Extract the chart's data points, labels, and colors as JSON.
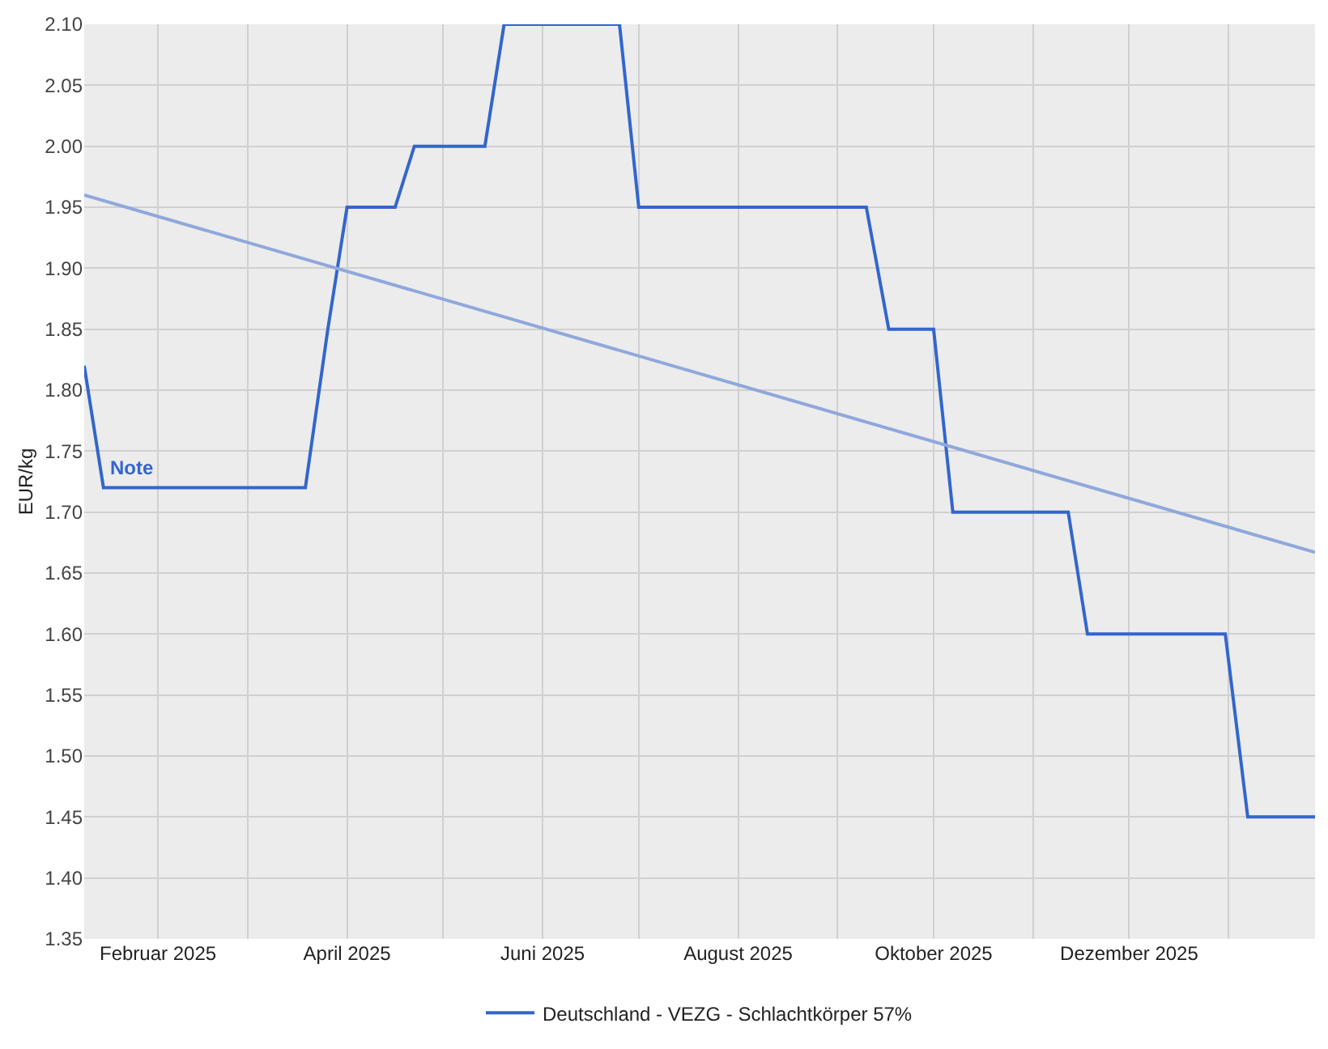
{
  "chart_data": {
    "type": "line",
    "ylabel": "EUR/kg",
    "xlim": [
      "2025-01-09",
      "2026-01-28"
    ],
    "xticks": [
      {
        "value": "2025-02-01",
        "label": "Februar 2025"
      },
      {
        "value": "2025-03-01",
        "label": null
      },
      {
        "value": "2025-04-01",
        "label": "April 2025"
      },
      {
        "value": "2025-05-01",
        "label": null
      },
      {
        "value": "2025-06-01",
        "label": "Juni 2025"
      },
      {
        "value": "2025-07-01",
        "label": null
      },
      {
        "value": "2025-08-01",
        "label": "August 2025"
      },
      {
        "value": "2025-09-01",
        "label": null
      },
      {
        "value": "2025-10-01",
        "label": "Oktober 2025"
      },
      {
        "value": "2025-11-01",
        "label": null
      },
      {
        "value": "2025-12-01",
        "label": "Dezember 2025"
      },
      {
        "value": "2026-01-01",
        "label": null
      }
    ],
    "ylim": [
      1.35,
      2.1
    ],
    "yticks": [
      {
        "value": 1.35,
        "label": "1.35"
      },
      {
        "value": 1.4,
        "label": "1.40"
      },
      {
        "value": 1.45,
        "label": "1.45"
      },
      {
        "value": 1.5,
        "label": "1.50"
      },
      {
        "value": 1.55,
        "label": "1.55"
      },
      {
        "value": 1.6,
        "label": "1.60"
      },
      {
        "value": 1.65,
        "label": "1.65"
      },
      {
        "value": 1.7,
        "label": "1.70"
      },
      {
        "value": 1.75,
        "label": "1.75"
      },
      {
        "value": 1.8,
        "label": "1.80"
      },
      {
        "value": 1.85,
        "label": "1.85"
      },
      {
        "value": 1.9,
        "label": "1.90"
      },
      {
        "value": 1.95,
        "label": "1.95"
      },
      {
        "value": 2.0,
        "label": "2.00"
      },
      {
        "value": 2.05,
        "label": "2.05"
      },
      {
        "value": 2.1,
        "label": "2.10"
      }
    ],
    "grid": true,
    "legend": "bottom",
    "marker": "none",
    "line_style": "solid",
    "series": [
      {
        "name": "Deutschland - VEZG - Schlachtkörper 57%",
        "color": "#3366cc",
        "x": [
          "2025-01-09",
          "2025-01-15",
          "2025-03-19",
          "2025-03-26",
          "2025-04-01",
          "2025-04-16",
          "2025-04-22",
          "2025-05-14",
          "2025-05-20",
          "2025-06-25",
          "2025-07-01",
          "2025-09-10",
          "2025-09-17",
          "2025-10-01",
          "2025-10-07",
          "2025-11-12",
          "2025-11-18",
          "2025-12-31",
          "2026-01-07",
          "2026-01-28"
        ],
        "values": [
          1.82,
          1.72,
          1.72,
          1.85,
          1.95,
          1.95,
          2.0,
          2.0,
          2.1,
          2.1,
          1.95,
          1.95,
          1.85,
          1.85,
          1.7,
          1.7,
          1.6,
          1.6,
          1.45,
          1.45
        ]
      },
      {
        "color": "#8fa8dc",
        "x": [
          "2025-01-09",
          "2026-01-28"
        ],
        "values": [
          1.96,
          1.667
        ]
      }
    ],
    "annotations": [
      {
        "text": "Note",
        "x": "2025-01-15",
        "y": 1.72
      }
    ]
  }
}
